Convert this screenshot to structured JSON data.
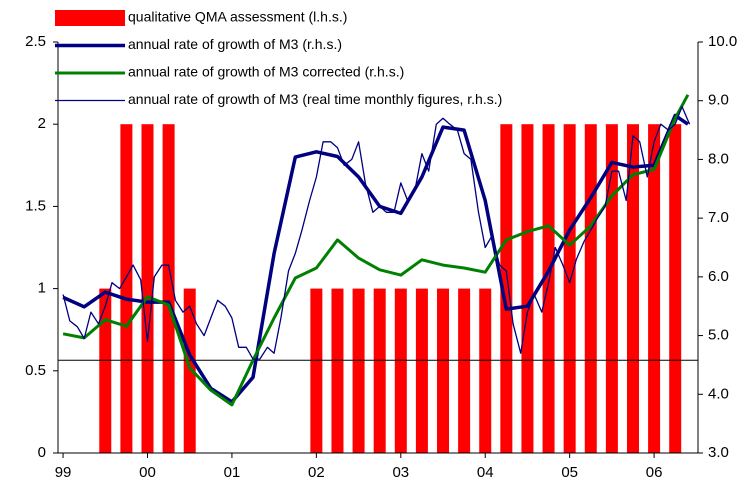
{
  "chart_data": {
    "type": "combo",
    "xlim": [
      1998.94,
      2006.52
    ],
    "xticks": [
      {
        "value": 1999,
        "label": "99"
      },
      {
        "value": 2000,
        "label": "00"
      },
      {
        "value": 2001,
        "label": "01"
      },
      {
        "value": 2002,
        "label": "02"
      },
      {
        "value": 2003,
        "label": "03"
      },
      {
        "value": 2004,
        "label": "04"
      },
      {
        "value": 2005,
        "label": "05"
      },
      {
        "value": 2006,
        "label": "06"
      }
    ],
    "ylim": [
      0,
      2.5
    ],
    "yticks": [
      0,
      0.5,
      1,
      1.5,
      2,
      2.5
    ],
    "y2lim": [
      3,
      10
    ],
    "y2ticks": [
      {
        "value": 3,
        "label": "3.0"
      },
      {
        "value": 4,
        "label": "4.0"
      },
      {
        "value": 5,
        "label": "5.0"
      },
      {
        "value": 6,
        "label": "6.0"
      },
      {
        "value": 7,
        "label": "7.0"
      },
      {
        "value": 8,
        "label": "8.0"
      },
      {
        "value": 9,
        "label": "9.0"
      },
      {
        "value": 10,
        "label": "10.0"
      }
    ],
    "reference_line": {
      "value": 4.58,
      "axis": "y2"
    },
    "legend": "top-left",
    "series": [
      {
        "name": "qualitative QMA assessment (l.h.s.)",
        "type": "bar",
        "color": "#ff0000",
        "axis": "y",
        "x": [
          1999.5,
          1999.75,
          2000,
          2000.25,
          2000.5,
          2000.75,
          2001,
          2001.25,
          2001.5,
          2001.75,
          2002,
          2002.25,
          2002.5,
          2002.75,
          2003,
          2003.25,
          2003.5,
          2003.75,
          2004,
          2004.25,
          2004.5,
          2004.75,
          2005,
          2005.25,
          2005.5,
          2005.75,
          2006,
          2006.25
        ],
        "values": [
          1,
          2,
          2,
          2,
          1,
          0,
          0,
          0,
          0,
          0,
          1,
          1,
          1,
          1,
          1,
          1,
          1,
          1,
          1,
          2,
          2,
          2,
          2,
          2,
          2,
          2,
          2,
          2
        ]
      },
      {
        "name": "annual rate of growth of M3 (r.h.s.)",
        "type": "line",
        "color": "#000080",
        "width": 3.5,
        "axis": "y2",
        "x": [
          1999,
          1999.25,
          1999.5,
          1999.75,
          2000,
          2000.25,
          2000.5,
          2000.75,
          2001,
          2001.25,
          2001.5,
          2001.75,
          2002,
          2002.25,
          2002.5,
          2002.75,
          2003,
          2003.25,
          2003.5,
          2003.75,
          2004,
          2004.25,
          2004.5,
          2004.75,
          2005,
          2005.25,
          2005.5,
          2005.75,
          2006,
          2006.25,
          2006.4
        ],
        "values": [
          5.65,
          5.49,
          5.74,
          5.62,
          5.57,
          5.57,
          4.67,
          4.1,
          3.87,
          4.29,
          6.4,
          8.04,
          8.13,
          8.05,
          7.7,
          7.2,
          7.08,
          7.7,
          8.55,
          8.5,
          7.3,
          5.45,
          5.5,
          6.1,
          6.8,
          7.35,
          7.95,
          7.87,
          7.9,
          8.75,
          8.6
        ]
      },
      {
        "name": "annual rate of growth of M3 corrected (r.h.s.)",
        "type": "line",
        "color": "#008000",
        "width": 3,
        "axis": "y2",
        "x": [
          1999,
          1999.25,
          1999.5,
          1999.75,
          2000,
          2000.25,
          2000.5,
          2000.75,
          2001,
          2001.25,
          2001.5,
          2001.75,
          2002,
          2002.25,
          2002.5,
          2002.75,
          2003,
          2003.25,
          2003.5,
          2003.75,
          2004,
          2004.25,
          2004.5,
          2004.75,
          2005,
          2005.25,
          2005.5,
          2005.75,
          2006,
          2006.25,
          2006.4
        ],
        "values": [
          5.03,
          4.96,
          5.27,
          5.16,
          5.66,
          5.52,
          4.45,
          4.07,
          3.82,
          4.58,
          5.3,
          5.98,
          6.15,
          6.63,
          6.32,
          6.12,
          6.03,
          6.29,
          6.2,
          6.15,
          6.08,
          6.63,
          6.77,
          6.87,
          6.54,
          6.87,
          7.38,
          7.74,
          7.83,
          8.7,
          9.1
        ]
      },
      {
        "name": "annual rate of growth of M3 (real time monthly figures, r.h.s.)",
        "type": "line",
        "color": "#000080",
        "width": 1.3,
        "axis": "y2",
        "x": [
          1999,
          1999.08,
          1999.17,
          1999.25,
          1999.33,
          1999.42,
          1999.5,
          1999.58,
          1999.67,
          1999.75,
          1999.83,
          1999.92,
          2000,
          2000.08,
          2000.17,
          2000.25,
          2000.33,
          2000.42,
          2000.5,
          2000.58,
          2000.67,
          2000.75,
          2000.83,
          2000.92,
          2001,
          2001.08,
          2001.17,
          2001.25,
          2001.33,
          2001.42,
          2001.5,
          2001.58,
          2001.67,
          2001.75,
          2001.83,
          2001.92,
          2002,
          2002.08,
          2002.17,
          2002.25,
          2002.33,
          2002.42,
          2002.5,
          2002.58,
          2002.67,
          2002.75,
          2002.83,
          2002.92,
          2003,
          2003.08,
          2003.17,
          2003.25,
          2003.33,
          2003.42,
          2003.5,
          2003.58,
          2003.67,
          2003.75,
          2003.83,
          2003.92,
          2004,
          2004.08,
          2004.17,
          2004.25,
          2004.33,
          2004.42,
          2004.5,
          2004.58,
          2004.67,
          2004.75,
          2004.83,
          2004.92,
          2005,
          2005.08,
          2005.17,
          2005.25,
          2005.33,
          2005.42,
          2005.5,
          2005.58,
          2005.67,
          2005.75,
          2005.83,
          2005.92,
          2006,
          2006.08,
          2006.17,
          2006.25,
          2006.33,
          2006.42
        ],
        "values": [
          5.7,
          5.25,
          5.15,
          4.95,
          5.4,
          5.2,
          5.5,
          5.9,
          5.8,
          6.0,
          6.2,
          5.95,
          4.9,
          6.0,
          6.2,
          6.2,
          5.6,
          5.4,
          5.5,
          5.2,
          5.0,
          5.3,
          5.6,
          5.5,
          5.3,
          4.8,
          4.8,
          4.6,
          4.6,
          4.8,
          4.7,
          5.3,
          6.1,
          6.4,
          6.8,
          7.3,
          7.7,
          8.3,
          8.3,
          8.2,
          7.9,
          8.0,
          8.3,
          7.6,
          7.1,
          7.2,
          7.1,
          7.1,
          7.6,
          7.3,
          7.5,
          8.1,
          7.8,
          8.6,
          8.7,
          8.6,
          8.5,
          8.1,
          8.0,
          7.1,
          6.5,
          6.7,
          6.2,
          6.1,
          5.2,
          4.7,
          5.4,
          5.7,
          5.4,
          5.9,
          6.5,
          6.2,
          5.9,
          6.3,
          6.6,
          6.8,
          7.0,
          7.2,
          7.8,
          7.8,
          7.3,
          8.4,
          8.3,
          7.7,
          8.3,
          8.6,
          8.5,
          8.6,
          8.9,
          8.6
        ]
      }
    ]
  }
}
